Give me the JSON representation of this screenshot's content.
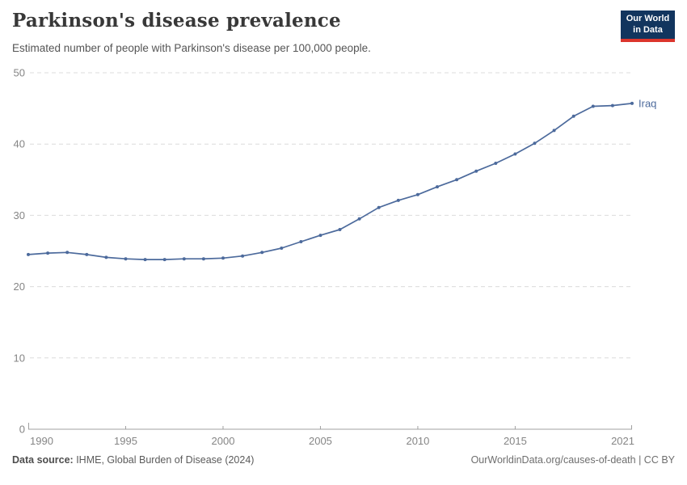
{
  "header": {
    "title": "Parkinson's disease prevalence",
    "subtitle": "Estimated number of people with Parkinson's disease per 100,000 people.",
    "logo_line1": "Our World",
    "logo_line2": "in Data"
  },
  "footer": {
    "source_label": "Data source:",
    "source_text": " IHME, Global Burden of Disease (2024)",
    "rights": "OurWorldinData.org/causes-of-death | CC BY"
  },
  "colors": {
    "series": "#4c6a9c",
    "grid": "#dcdcdc",
    "axis": "#a0a0a0",
    "tick_label": "#858585",
    "logo_navy": "#12355e",
    "logo_red": "#dc352c"
  },
  "chart_data": {
    "type": "line",
    "title": "Parkinson's disease prevalence",
    "subtitle": "Estimated number of people with Parkinson's disease per 100,000 people.",
    "xlabel": "",
    "ylabel": "",
    "ylim": [
      0,
      50
    ],
    "yticks": [
      0,
      10,
      20,
      30,
      40,
      50
    ],
    "xticks": [
      1990,
      1995,
      2000,
      2005,
      2010,
      2015,
      2021
    ],
    "grid": true,
    "legend_position": "end-of-line",
    "series": [
      {
        "name": "Iraq",
        "color": "#4c6a9c",
        "x": [
          1990,
          1991,
          1992,
          1993,
          1994,
          1995,
          1996,
          1997,
          1998,
          1999,
          2000,
          2001,
          2002,
          2003,
          2004,
          2005,
          2006,
          2007,
          2008,
          2009,
          2010,
          2011,
          2012,
          2013,
          2014,
          2015,
          2016,
          2017,
          2018,
          2019,
          2020,
          2021
        ],
        "values": [
          24.5,
          24.7,
          24.8,
          24.5,
          24.1,
          23.9,
          23.8,
          23.8,
          23.9,
          23.9,
          24.0,
          24.3,
          24.8,
          25.4,
          26.3,
          27.2,
          28.0,
          29.5,
          31.1,
          32.1,
          32.9,
          34.0,
          35.0,
          36.2,
          37.3,
          38.6,
          40.1,
          41.9,
          43.9,
          45.3,
          45.4,
          45.7
        ]
      }
    ]
  }
}
